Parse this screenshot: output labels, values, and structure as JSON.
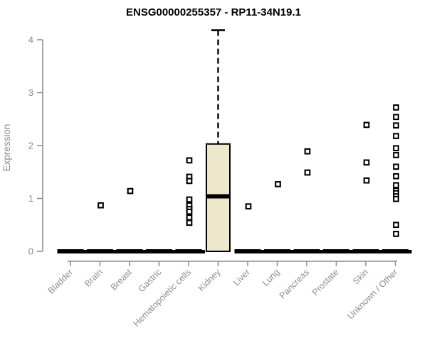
{
  "chart_data": {
    "type": "boxplot",
    "title": "ENSG00000255357 - RP11-34N19.1",
    "ylabel": "Expression",
    "xlabel": "",
    "ylim": [
      0,
      4.2
    ],
    "yticks": [
      0,
      1,
      2,
      3,
      4
    ],
    "grid": false,
    "marker_style": "open-square",
    "categories": [
      "Bladder",
      "Brain",
      "Breast",
      "Gastric",
      "Hematopoietic cells",
      "Kidney",
      "Liver",
      "Lung",
      "Pancreas",
      "Prostate",
      "Skin",
      "Unknown / Other"
    ],
    "groups": [
      {
        "category": "Bladder",
        "zero_line": true,
        "points": []
      },
      {
        "category": "Brain",
        "zero_line": true,
        "points": [
          0.87
        ]
      },
      {
        "category": "Breast",
        "zero_line": true,
        "points": [
          1.14
        ]
      },
      {
        "category": "Gastric",
        "zero_line": true,
        "points": []
      },
      {
        "category": "Hematopoietic cells",
        "zero_line": true,
        "points": [
          1.72,
          1.41,
          1.33,
          0.98,
          0.87,
          0.8,
          0.75,
          0.64,
          0.54
        ]
      },
      {
        "category": "Kidney",
        "zero_line": false,
        "points": [],
        "box": {
          "q1": 0.0,
          "median": 1.04,
          "q3": 2.03,
          "whisker_high": 4.18
        }
      },
      {
        "category": "Liver",
        "zero_line": true,
        "points": [
          0.85
        ]
      },
      {
        "category": "Lung",
        "zero_line": true,
        "points": [
          1.27
        ]
      },
      {
        "category": "Pancreas",
        "zero_line": true,
        "points": [
          1.89,
          1.49
        ]
      },
      {
        "category": "Prostate",
        "zero_line": true,
        "points": []
      },
      {
        "category": "Skin",
        "zero_line": true,
        "points": [
          2.39,
          1.68,
          1.34
        ]
      },
      {
        "category": "Unknown / Other",
        "zero_line": true,
        "points": [
          2.72,
          2.54,
          2.38,
          2.18,
          1.95,
          1.82,
          1.6,
          1.42,
          1.25,
          1.15,
          1.1,
          1.04,
          0.99,
          0.5,
          0.33
        ]
      }
    ],
    "colors": {
      "background": "#ffffff",
      "box_fill": "#EDE8CB",
      "box_border": "#000000",
      "median": "#000000",
      "marker": "#000000",
      "zero_bar": "#000000",
      "axis": "#8A8A8A",
      "tick_label": "#8E8E8E",
      "title": "#000000"
    }
  }
}
